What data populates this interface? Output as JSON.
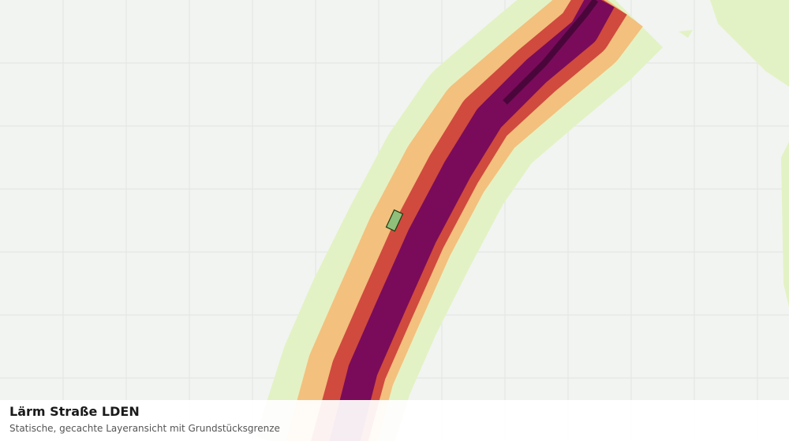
{
  "header": {
    "title": "Lärm Straße LDEN",
    "subtitle": "Statische, gecachte Layeransicht mit Grundstücksgrenze"
  }
}
